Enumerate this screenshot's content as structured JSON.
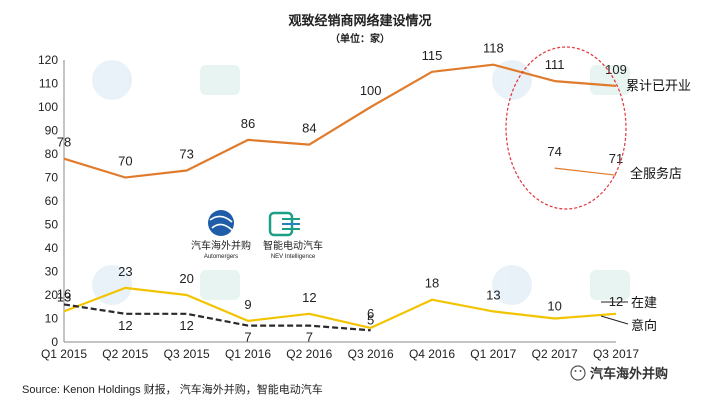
{
  "chart_data": {
    "type": "line",
    "title": "观致经销商网络建设情况",
    "subtitle": "（单位：家）",
    "categories": [
      "Q1 2015",
      "Q2 2015",
      "Q3 2015",
      "Q1 2016",
      "Q2 2016",
      "Q3 2016",
      "Q4 2016",
      "Q1 2017",
      "Q2 2017",
      "Q3 2017"
    ],
    "ylim": [
      0,
      120
    ],
    "yticks": [
      0,
      10,
      20,
      30,
      40,
      50,
      60,
      70,
      80,
      90,
      100,
      110,
      120
    ],
    "grid": false,
    "series": [
      {
        "name": "累计已开业",
        "color": "#e07b2c",
        "values": [
          78,
          70,
          73,
          86,
          84,
          100,
          115,
          118,
          111,
          109
        ]
      },
      {
        "name": "全服务店",
        "color": "#e07b2c",
        "values": [
          null,
          null,
          null,
          null,
          null,
          null,
          null,
          null,
          74,
          71
        ]
      },
      {
        "name": "在建",
        "color": "#f2c400",
        "values": [
          13,
          23,
          20,
          9,
          12,
          6,
          18,
          13,
          10,
          12
        ]
      },
      {
        "name": "意向",
        "color": "#2a2a2a",
        "values": [
          16,
          12,
          12,
          7,
          7,
          5,
          null,
          null,
          null,
          null
        ]
      }
    ],
    "annotations": [
      "Q2 2017 and Q3 2017 circled with a dashed red ellipse"
    ],
    "source": "Source: Kenon Holdings 财报，  汽车海外并购，智能电动汽车"
  },
  "watermarks": {
    "logo1_cn": "汽车海外并购",
    "logo1_en": "Automergers",
    "logo2_cn": "智能电动汽车",
    "logo2_en": "NEV Intelligence",
    "corner": "汽车海外并购"
  },
  "colors": {
    "orange": "#e07b2c",
    "yellow": "#f2c400",
    "dark": "#2a2a2a",
    "circle": "#e0353a"
  }
}
